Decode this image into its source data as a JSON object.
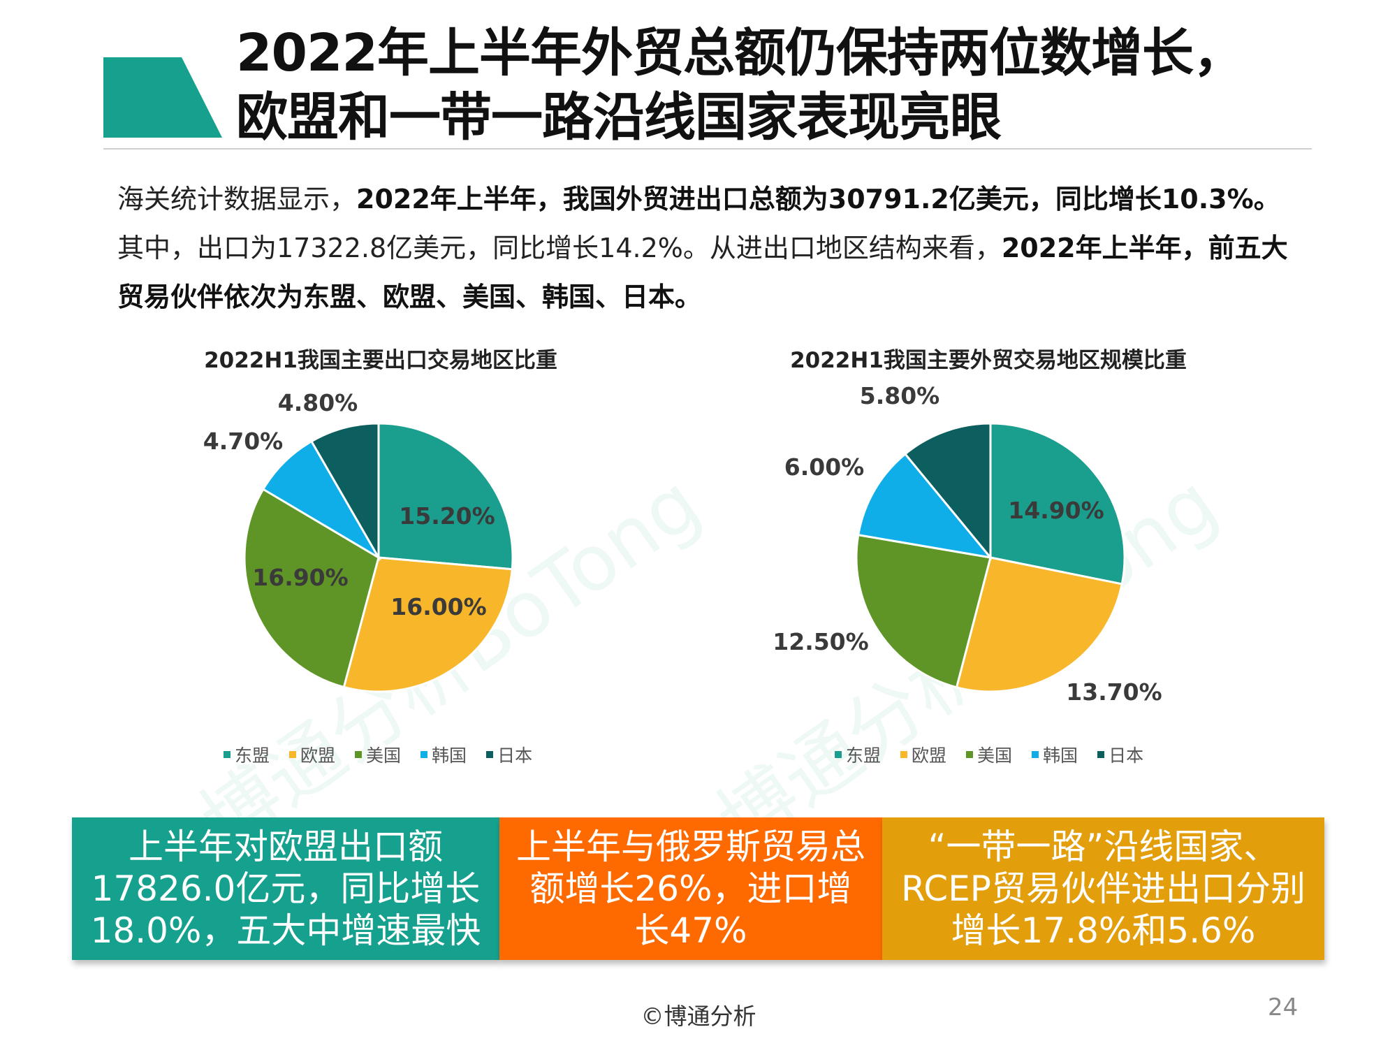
{
  "header": {
    "title_line1": "2022年上半年外贸总额仍保持两位数增长，",
    "title_line2": "欧盟和一带一路沿线国家表现亮眼",
    "accent_color": "#16A08E"
  },
  "intro": {
    "p1_normal": "海关统计数据显示，",
    "p1_bold": "2022年上半年，我国外贸进出口总额为30791.2亿美元，同比增长10.3%。",
    "p2_normal": "其中，出口为17322.8亿美元，同比增长14.2%。从进出口地区结构来看，",
    "p2_bold": "2022年上半年，前五大贸易伙伴依次为东盟、欧盟、美国、韩国、日本。"
  },
  "legend": [
    "东盟",
    "欧盟",
    "美国",
    "韩国",
    "日本"
  ],
  "watermark": "博通分析BoTong",
  "chart_data": [
    {
      "type": "pie",
      "title": "2022H1我国主要出口交易地区比重",
      "categories": [
        "东盟",
        "欧盟",
        "美国",
        "韩国",
        "日本"
      ],
      "values": [
        15.2,
        16.0,
        16.9,
        4.7,
        4.8
      ],
      "labels": [
        "15.20%",
        "16.00%",
        "16.90%",
        "4.70%",
        "4.80%"
      ],
      "colors": [
        "#1A9E8E",
        "#F8B62A",
        "#5E9526",
        "#10AEE8",
        "#0C5F5E"
      ],
      "legend_position": "bottom"
    },
    {
      "type": "pie",
      "title": "2022H1我国主要外贸交易地区规模比重",
      "categories": [
        "东盟",
        "欧盟",
        "美国",
        "韩国",
        "日本"
      ],
      "values": [
        14.9,
        13.7,
        12.5,
        6.0,
        5.8
      ],
      "labels": [
        "14.90%",
        "13.70%",
        "12.50%",
        "6.00%",
        "5.80%"
      ],
      "colors": [
        "#1A9E8E",
        "#F8B62A",
        "#5E9526",
        "#10AEE8",
        "#0C5F5E"
      ],
      "legend_position": "bottom"
    }
  ],
  "boxes": [
    {
      "text": "上半年对欧盟出口额17826.0亿元，同比增长18.0%，五大中增速最快",
      "color": "#16A08E"
    },
    {
      "text": "上半年与俄罗斯贸易总额增长26%，进口增长47%",
      "color": "#FF6A00"
    },
    {
      "text": "“一带一路”沿线国家、RCEP贸易伙伴进出口分别增长17.8%和5.6%",
      "color": "#E39E0C"
    }
  ],
  "footer": "©博通分析",
  "page_number": "24"
}
